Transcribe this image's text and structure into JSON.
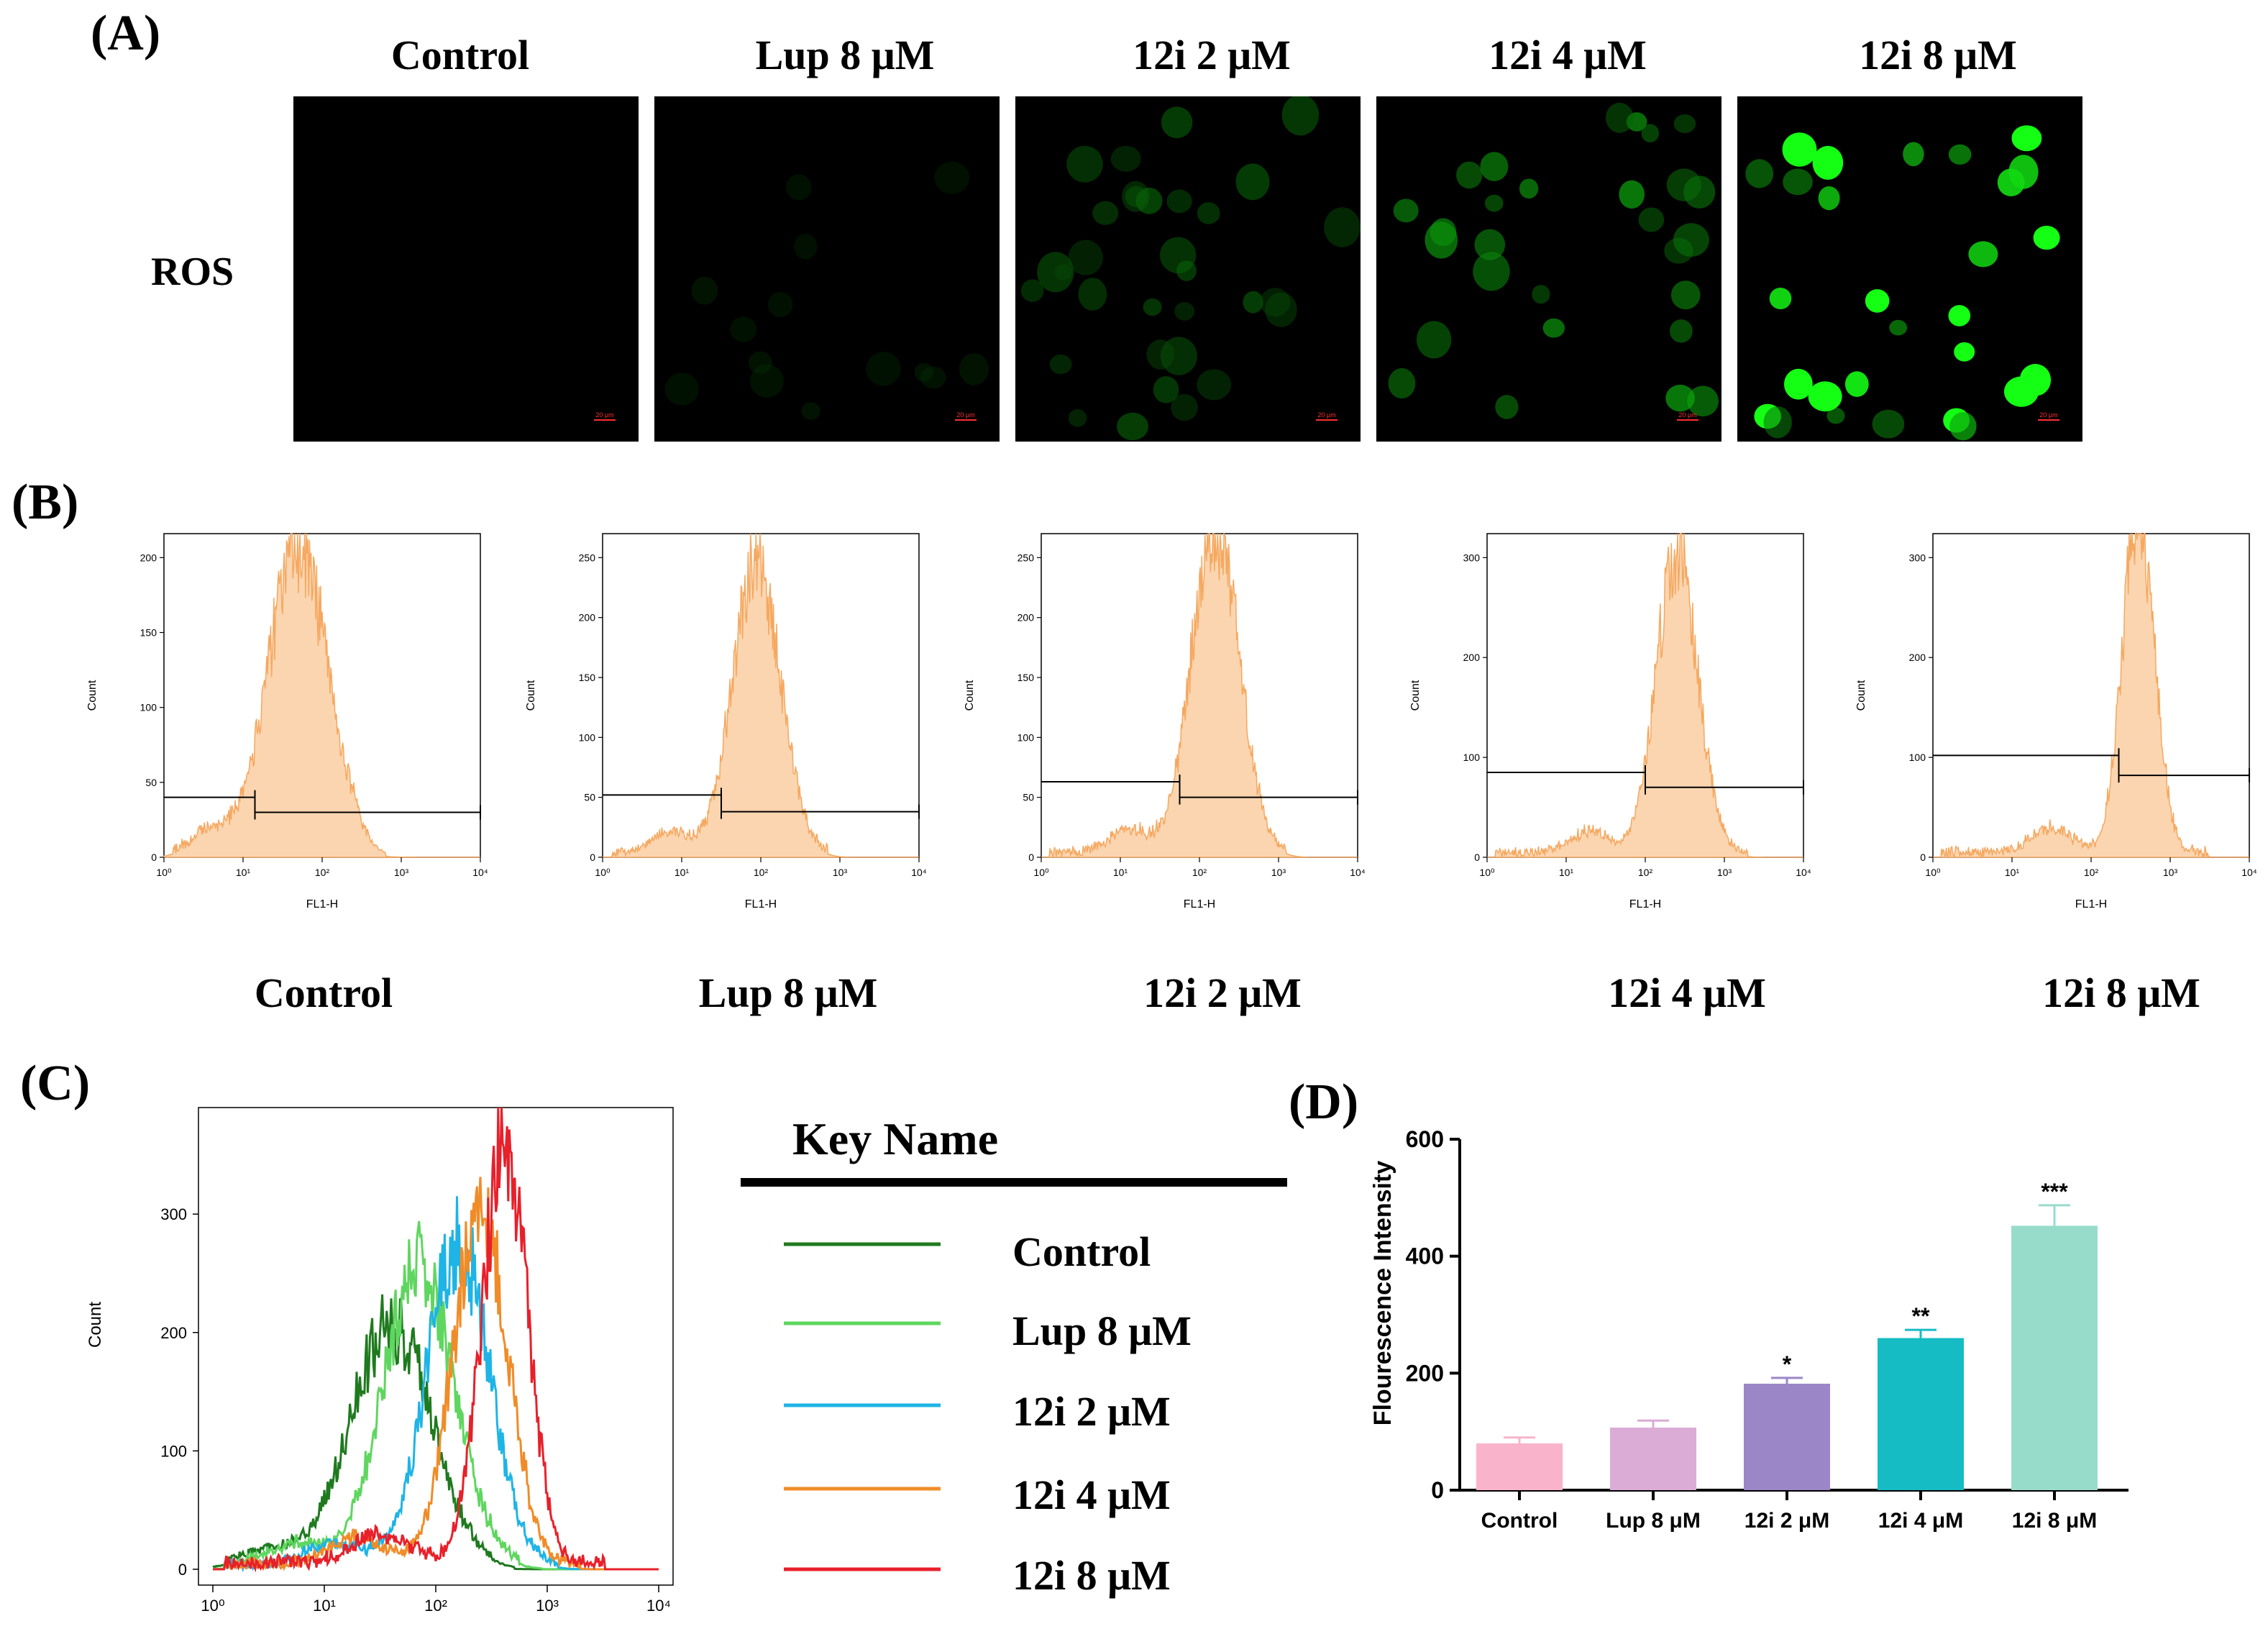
{
  "panels": {
    "a": "(A)",
    "b": "(B)",
    "c": "(C)",
    "d": "(D)"
  },
  "groups": [
    "Control",
    "Lup 8 μM",
    "12i 2 μM",
    "12i 4 μM",
    "12i 8 μM"
  ],
  "panel_a": {
    "row_label": "ROS",
    "scale_bar_label": "20 μm",
    "fluorescence_level": [
      0.0,
      0.05,
      0.35,
      0.6,
      1.0
    ],
    "green_color": "#22ff22"
  },
  "panel_b": {
    "xlabel": "FL1-H",
    "ylabel": "Count",
    "fill_color": "#fbd5b0",
    "line_color": "#f5a860",
    "histograms": [
      {
        "ymax": 200,
        "yticks": [
          0,
          50,
          100,
          150,
          200
        ],
        "peak_log": 1.7,
        "peak_count": 205,
        "sigma": 0.38,
        "gate_left": 40,
        "gate_right": 30,
        "gate_split_log": 1.15
      },
      {
        "ymax": 250,
        "yticks": [
          0,
          50,
          100,
          150,
          200,
          250
        ],
        "peak_log": 1.95,
        "peak_count": 245,
        "sigma": 0.3,
        "gate_left": 52,
        "gate_right": 38,
        "gate_split_log": 1.5
      },
      {
        "ymax": 250,
        "yticks": [
          0,
          50,
          100,
          150,
          200,
          250
        ],
        "peak_log": 2.2,
        "peak_count": 270,
        "sigma": 0.3,
        "gate_left": 63,
        "gate_right": 50,
        "gate_split_log": 1.75
      },
      {
        "ymax": 300,
        "yticks": [
          0,
          100,
          200,
          300
        ],
        "peak_log": 2.4,
        "peak_count": 300,
        "sigma": 0.26,
        "gate_left": 85,
        "gate_right": 70,
        "gate_split_log": 2.0
      },
      {
        "ymax": 300,
        "yticks": [
          0,
          100,
          200,
          300
        ],
        "peak_log": 2.6,
        "peak_count": 345,
        "sigma": 0.2,
        "gate_left": 102,
        "gate_right": 82,
        "gate_split_log": 2.35
      }
    ],
    "xticks": [
      "10⁰",
      "10¹",
      "10²",
      "10³",
      "10⁴"
    ]
  },
  "panel_c": {
    "ylabel": "Count",
    "yticks": [
      0,
      100,
      200,
      300
    ],
    "xticks": [
      "10⁰",
      "10¹",
      "10²",
      "10³",
      "10⁴"
    ],
    "key_title": "Key Name",
    "series": [
      {
        "name": "Control",
        "color": "#1f7a1f",
        "peak_log": 1.6,
        "peak_count": 205,
        "sigma": 0.36
      },
      {
        "name": "Lup 8 μM",
        "color": "#5fd65f",
        "peak_log": 1.85,
        "peak_count": 252,
        "sigma": 0.32
      },
      {
        "name": "12i 2 μM",
        "color": "#1eb4e6",
        "peak_log": 2.2,
        "peak_count": 272,
        "sigma": 0.28
      },
      {
        "name": "12i 4 μM",
        "color": "#f08c28",
        "peak_log": 2.4,
        "peak_count": 308,
        "sigma": 0.24
      },
      {
        "name": "12i 8 μM",
        "color": "#e8202a",
        "peak_log": 2.62,
        "peak_count": 355,
        "sigma": 0.2
      }
    ]
  },
  "chart_data": {
    "type": "bar",
    "ylabel": "Flourescence Intensity",
    "xlabel": "",
    "categories": [
      "Control",
      "Lup 8 μM",
      "12i 2 μM",
      "12i 4 μM",
      "12i 8 μM"
    ],
    "values": [
      80,
      107,
      182,
      260,
      452
    ],
    "errors": [
      10,
      12,
      10,
      14,
      35
    ],
    "significance": [
      "",
      "",
      "*",
      "**",
      "***"
    ],
    "colors": [
      "#f9b4cb",
      "#dbacd6",
      "#9b86c7",
      "#16bcc4",
      "#97dccb"
    ],
    "ylim": [
      0,
      600
    ],
    "yticks": [
      0,
      200,
      400,
      600
    ]
  }
}
